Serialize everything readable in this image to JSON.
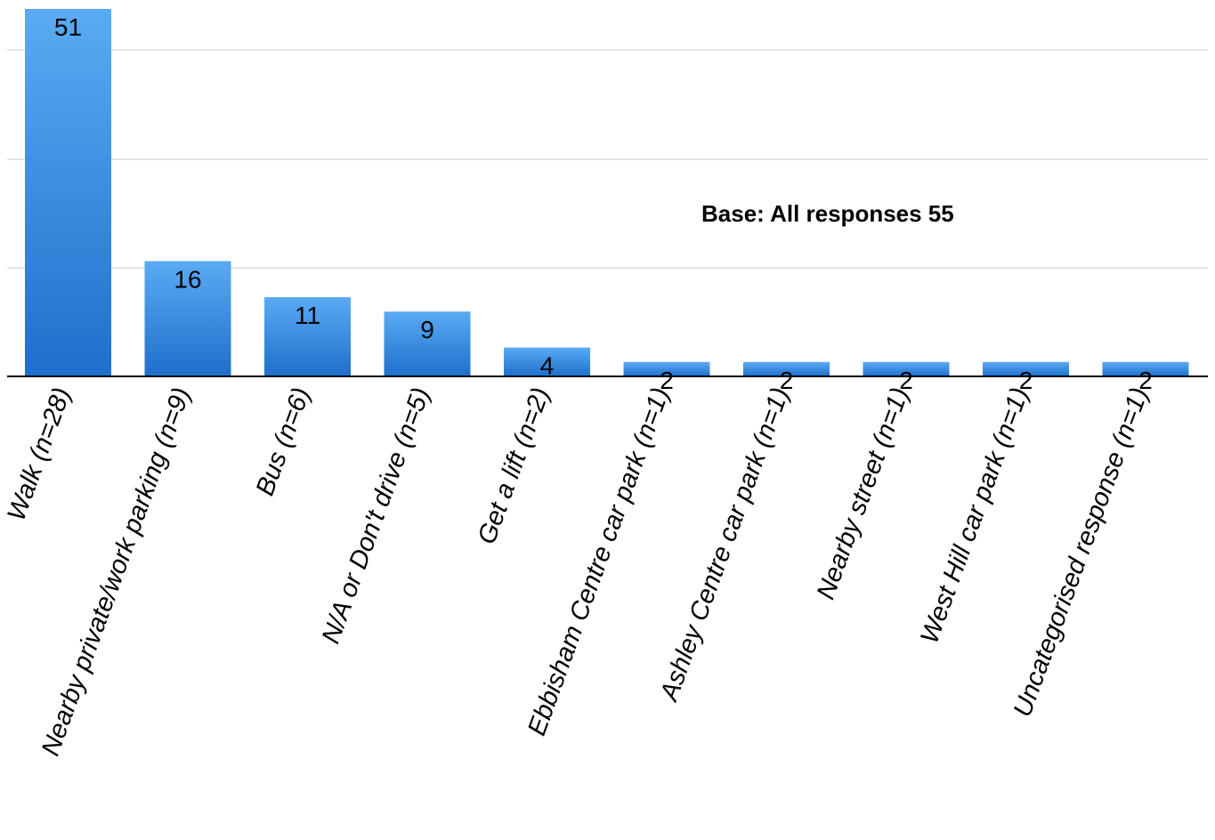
{
  "chart_data": {
    "type": "bar",
    "categories": [
      "Walk (n=28)",
      "Nearby private/work parking (n=9)",
      "Bus (n=6)",
      "N/A or Don't drive (n=5)",
      "Get a lift (n=2)",
      "Ebbisham Centre car park (n=1)",
      "Ashley Centre car park (n=1)",
      "Nearby street (n=1)",
      "West Hill car  park (n=1)",
      "Uncategorised response (n=1)"
    ],
    "values": [
      51,
      16,
      11,
      9,
      4,
      2,
      2,
      2,
      2,
      2
    ],
    "data_labels": [
      "51",
      "16",
      "11",
      "9",
      "4",
      "2",
      "2",
      "2",
      "2",
      "2"
    ],
    "ylim": [
      0,
      51
    ],
    "grid": true,
    "annotation": "Base: All responses 55",
    "bar_color_top": "#5aabf3",
    "bar_color_bottom": "#1e6fcc",
    "grid_color": "#c8c8c8",
    "axis_color": "#000000"
  }
}
